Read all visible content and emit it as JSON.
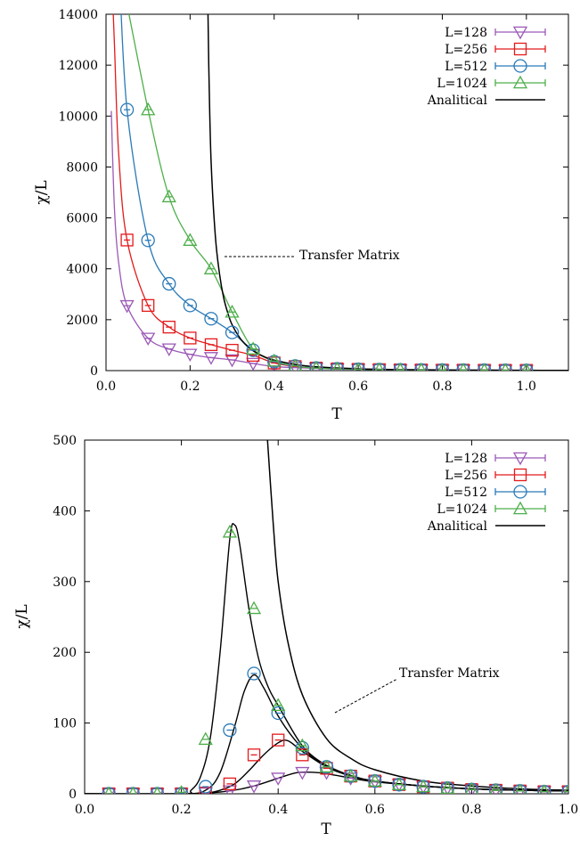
{
  "figure_labels": {
    "ylabel": "χ/L",
    "xlabel": "T",
    "annotation": "Transfer Matrix"
  },
  "legend": [
    {
      "label": "L=128",
      "color": "#9b59b6",
      "marker": "triangle-down"
    },
    {
      "label": "L=256",
      "color": "#e41a1c",
      "marker": "square"
    },
    {
      "label": "L=512",
      "color": "#2a7ab8",
      "marker": "circle"
    },
    {
      "label": "L=1024",
      "color": "#4daf4a",
      "marker": "triangle-up"
    },
    {
      "label": "Analitical",
      "color": "#000000",
      "marker": "line"
    }
  ],
  "chart_data": [
    {
      "type": "line",
      "xlabel": "T",
      "ylabel": "χ/L",
      "xlim": [
        0.0,
        1.1
      ],
      "ylim": [
        0,
        14000
      ],
      "xticks": [
        "0.0",
        "0.2",
        "0.4",
        "0.6",
        "0.8",
        "1.0"
      ],
      "xtick_values": [
        0.0,
        0.2,
        0.4,
        0.6,
        0.8,
        1.0
      ],
      "yticks": [
        "0",
        "2000",
        "4000",
        "6000",
        "8000",
        "10000",
        "12000",
        "14000"
      ],
      "ytick_values": [
        0,
        2000,
        4000,
        6000,
        8000,
        10000,
        12000,
        14000
      ],
      "annotation": {
        "text": "Transfer Matrix",
        "points_to": [
          0.26,
          4000
        ]
      },
      "series": [
        {
          "name": "L=128",
          "color": "#9b59b6",
          "marker": "triangle-down",
          "x": [
            0.05,
            0.1,
            0.15,
            0.2,
            0.25,
            0.3,
            0.35,
            0.4,
            0.45,
            0.5,
            0.55,
            0.6,
            0.65,
            0.7,
            0.75,
            0.8,
            0.85,
            0.9,
            0.95,
            1.0
          ],
          "y": [
            2550,
            1270,
            850,
            640,
            510,
            420,
            280,
            160,
            120,
            90,
            60,
            50,
            40,
            30,
            25,
            20,
            18,
            15,
            12,
            10
          ]
        },
        {
          "name": "L=256",
          "color": "#e41a1c",
          "marker": "square",
          "x": [
            0.05,
            0.1,
            0.15,
            0.2,
            0.25,
            0.3,
            0.35,
            0.4,
            0.45,
            0.5,
            0.55,
            0.6,
            0.65,
            0.7,
            0.75,
            0.8,
            0.85,
            0.9,
            0.95,
            1.0
          ],
          "y": [
            5130,
            2560,
            1710,
            1280,
            1020,
            800,
            600,
            300,
            160,
            100,
            70,
            50,
            40,
            30,
            25,
            20,
            18,
            15,
            12,
            10
          ]
        },
        {
          "name": "L=512",
          "color": "#2a7ab8",
          "marker": "circle",
          "x": [
            0.05,
            0.1,
            0.15,
            0.2,
            0.25,
            0.3,
            0.35,
            0.4,
            0.45,
            0.5,
            0.55,
            0.6,
            0.65,
            0.7,
            0.75,
            0.8,
            0.85,
            0.9,
            0.95,
            1.0
          ],
          "y": [
            10250,
            5120,
            3410,
            2560,
            2040,
            1500,
            800,
            350,
            180,
            100,
            70,
            50,
            40,
            30,
            25,
            20,
            18,
            15,
            12,
            10
          ]
        },
        {
          "name": "L=1024",
          "color": "#4daf4a",
          "marker": "triangle-up",
          "x": [
            0.1,
            0.15,
            0.2,
            0.25,
            0.3,
            0.35,
            0.4,
            0.45,
            0.5,
            0.55,
            0.6,
            0.65,
            0.7,
            0.75,
            0.8,
            0.85,
            0.9,
            0.95,
            1.0
          ],
          "y": [
            10250,
            6830,
            5120,
            4000,
            2300,
            850,
            380,
            180,
            100,
            70,
            50,
            40,
            30,
            25,
            20,
            18,
            15,
            12,
            10
          ]
        },
        {
          "name": "Analitical",
          "color": "#000000",
          "marker": "none",
          "x": [
            0.2426,
            0.245,
            0.25,
            0.26,
            0.27,
            0.28,
            0.29,
            0.3,
            0.32,
            0.34,
            0.36,
            0.38,
            0.4,
            0.45,
            0.5,
            0.6,
            0.7,
            0.8,
            0.9,
            1.0,
            1.1
          ],
          "y": [
            14000,
            11500,
            8200,
            5300,
            3800,
            2850,
            2250,
            1800,
            1250,
            900,
            680,
            520,
            410,
            240,
            150,
            70,
            40,
            25,
            17,
            12,
            8
          ]
        }
      ]
    },
    {
      "type": "line",
      "xlabel": "T",
      "ylabel": "χ/L",
      "xlim": [
        0.0,
        1.0
      ],
      "ylim": [
        0,
        500
      ],
      "xticks": [
        "0.0",
        "0.2",
        "0.4",
        "0.6",
        "0.8",
        "1.0"
      ],
      "xtick_values": [
        0.0,
        0.2,
        0.4,
        0.6,
        0.8,
        1.0
      ],
      "yticks": [
        "0",
        "100",
        "200",
        "300",
        "400",
        "500"
      ],
      "ytick_values": [
        0,
        100,
        200,
        300,
        400,
        500
      ],
      "annotation": {
        "text": "Transfer Matrix",
        "points_to": [
          0.52,
          100
        ]
      },
      "series": [
        {
          "name": "L=128",
          "color": "#9b59b6",
          "marker": "triangle-down",
          "x": [
            0.05,
            0.1,
            0.15,
            0.2,
            0.25,
            0.3,
            0.35,
            0.4,
            0.45,
            0.5,
            0.55,
            0.6,
            0.65,
            0.7,
            0.75,
            0.8,
            0.85,
            0.9,
            0.95,
            1.0
          ],
          "y": [
            0,
            0,
            0,
            0,
            1,
            4,
            11,
            22,
            30,
            30,
            22,
            17,
            13,
            10,
            8,
            6,
            5,
            4,
            3,
            3
          ]
        },
        {
          "name": "L=256",
          "color": "#e41a1c",
          "marker": "square",
          "x": [
            0.05,
            0.1,
            0.15,
            0.2,
            0.25,
            0.3,
            0.35,
            0.4,
            0.45,
            0.5,
            0.55,
            0.6,
            0.65,
            0.7,
            0.75,
            0.8,
            0.85,
            0.9,
            0.95,
            1.0
          ],
          "y": [
            0,
            0,
            0,
            0,
            1,
            14,
            55,
            76,
            55,
            36,
            25,
            18,
            13,
            10,
            8,
            6,
            5,
            4,
            3,
            3
          ]
        },
        {
          "name": "L=512",
          "color": "#2a7ab8",
          "marker": "circle",
          "x": [
            0.05,
            0.1,
            0.15,
            0.2,
            0.25,
            0.3,
            0.35,
            0.4,
            0.45,
            0.5,
            0.55,
            0.6,
            0.65,
            0.7,
            0.75,
            0.8,
            0.85,
            0.9,
            0.95,
            1.0
          ],
          "y": [
            0,
            0,
            0,
            0,
            10,
            90,
            170,
            114,
            65,
            38,
            25,
            18,
            13,
            10,
            8,
            6,
            5,
            4,
            3,
            3
          ]
        },
        {
          "name": "L=1024",
          "color": "#4daf4a",
          "marker": "triangle-up",
          "x": [
            0.05,
            0.1,
            0.15,
            0.2,
            0.25,
            0.3,
            0.35,
            0.4,
            0.45,
            0.5,
            0.55,
            0.6,
            0.65,
            0.7,
            0.75,
            0.8,
            0.85,
            0.9,
            0.95,
            1.0
          ],
          "y": [
            0,
            0,
            0,
            2,
            77,
            370,
            262,
            125,
            68,
            38,
            25,
            18,
            13,
            10,
            8,
            6,
            5,
            4,
            3,
            3
          ]
        },
        {
          "name": "Analitical",
          "color": "#000000",
          "marker": "none",
          "x": [
            0.378,
            0.39,
            0.4,
            0.42,
            0.45,
            0.5,
            0.55,
            0.6,
            0.7,
            0.8,
            0.9,
            1.0
          ],
          "y": [
            500,
            380,
            300,
            215,
            140,
            78,
            50,
            34,
            18,
            11,
            7,
            5
          ]
        }
      ],
      "finite_size_curves": [
        {
          "name": "L=128",
          "x": [
            0.0,
            0.15,
            0.2,
            0.25,
            0.3,
            0.35,
            0.4,
            0.44,
            0.48,
            0.52,
            0.56,
            0.6,
            0.7,
            0.8,
            0.9,
            1.0
          ],
          "y": [
            0,
            0,
            0,
            1,
            4,
            11,
            22,
            30,
            30,
            26,
            21,
            17,
            11,
            7,
            5,
            4
          ]
        },
        {
          "name": "L=256",
          "x": [
            0.0,
            0.2,
            0.25,
            0.28,
            0.31,
            0.34,
            0.37,
            0.4,
            0.42,
            0.45,
            0.5,
            0.55,
            0.6,
            0.7,
            0.8,
            0.9,
            1.0
          ],
          "y": [
            0,
            0,
            1,
            5,
            14,
            33,
            55,
            72,
            75,
            60,
            38,
            25,
            18,
            11,
            7,
            5,
            4
          ]
        },
        {
          "name": "L=512",
          "x": [
            0.0,
            0.2,
            0.25,
            0.28,
            0.31,
            0.33,
            0.35,
            0.37,
            0.4,
            0.43,
            0.46,
            0.5,
            0.55,
            0.6,
            0.7,
            0.8,
            0.9,
            1.0
          ],
          "y": [
            0,
            0,
            5,
            30,
            95,
            145,
            168,
            150,
            110,
            80,
            58,
            40,
            26,
            18,
            11,
            7,
            5,
            4
          ]
        },
        {
          "name": "L=1024",
          "x": [
            0.0,
            0.2,
            0.22,
            0.24,
            0.26,
            0.28,
            0.3,
            0.31,
            0.32,
            0.34,
            0.36,
            0.38,
            0.4,
            0.45,
            0.5,
            0.55,
            0.6,
            0.7,
            0.8,
            0.9,
            1.0
          ],
          "y": [
            0,
            0,
            5,
            25,
            80,
            200,
            360,
            380,
            355,
            260,
            190,
            150,
            125,
            68,
            40,
            26,
            18,
            11,
            7,
            5,
            4
          ]
        }
      ]
    }
  ]
}
